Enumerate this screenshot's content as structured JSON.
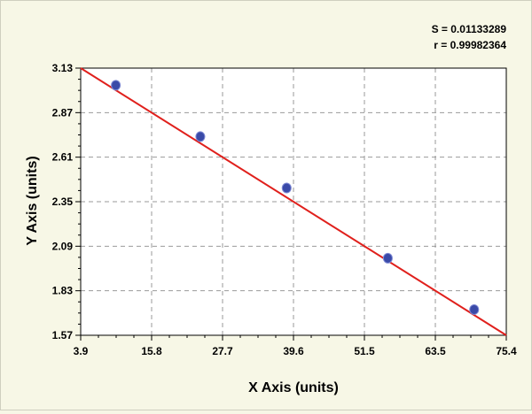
{
  "chart_data": {
    "type": "scatter",
    "xlabel": "X Axis (units)",
    "ylabel": "Y Axis (units)",
    "xlim": [
      3.9,
      75.4
    ],
    "ylim": [
      1.57,
      3.13
    ],
    "x_ticks": [
      "3.9",
      "15.8",
      "27.7",
      "39.6",
      "51.5",
      "63.5",
      "75.4"
    ],
    "y_ticks": [
      "1.57",
      "1.83",
      "2.09",
      "2.35",
      "2.61",
      "2.87",
      "3.13"
    ],
    "grid": true,
    "stats": {
      "s_label": "S = 0.01133289",
      "r_label": "r = 0.99982364"
    },
    "series": [
      {
        "points": [
          {
            "x": 9.8,
            "y": 3.03
          },
          {
            "x": 24.0,
            "y": 2.73
          },
          {
            "x": 38.5,
            "y": 2.43
          },
          {
            "x": 55.5,
            "y": 2.02
          },
          {
            "x": 70.0,
            "y": 1.72
          }
        ],
        "color": "#3a4aa8"
      }
    ],
    "fit_line": {
      "x": [
        3.9,
        75.4
      ],
      "y": [
        3.13,
        1.57
      ],
      "color": "#e0201c"
    },
    "colors": {
      "plot_background": "#ffffff",
      "grid": "#999999",
      "axis": "#000000"
    }
  }
}
